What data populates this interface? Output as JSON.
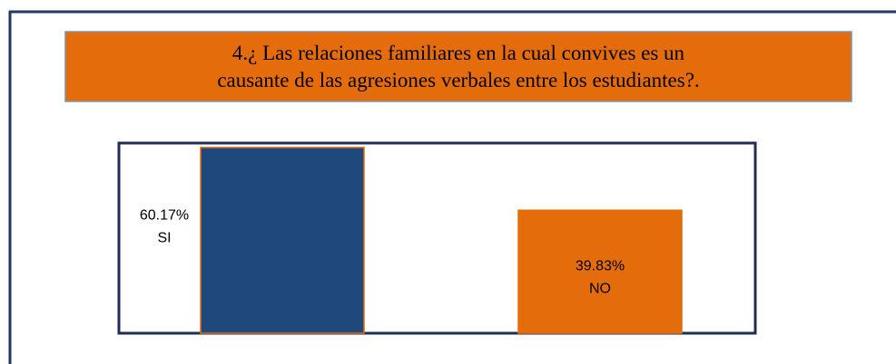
{
  "chart_data": {
    "type": "bar",
    "title": [
      "4.¿ Las relaciones familiares  en la cual convives  es un",
      "causante de las agresiones verbales entre los estudiantes?."
    ],
    "categories": [
      "SI",
      "NO"
    ],
    "values": [
      60.17,
      39.83
    ],
    "value_labels": [
      "60.17%",
      "39.83%"
    ],
    "colors": [
      "#1f497d",
      "#e46c0a"
    ],
    "ylim": [
      0,
      61.6
    ]
  }
}
